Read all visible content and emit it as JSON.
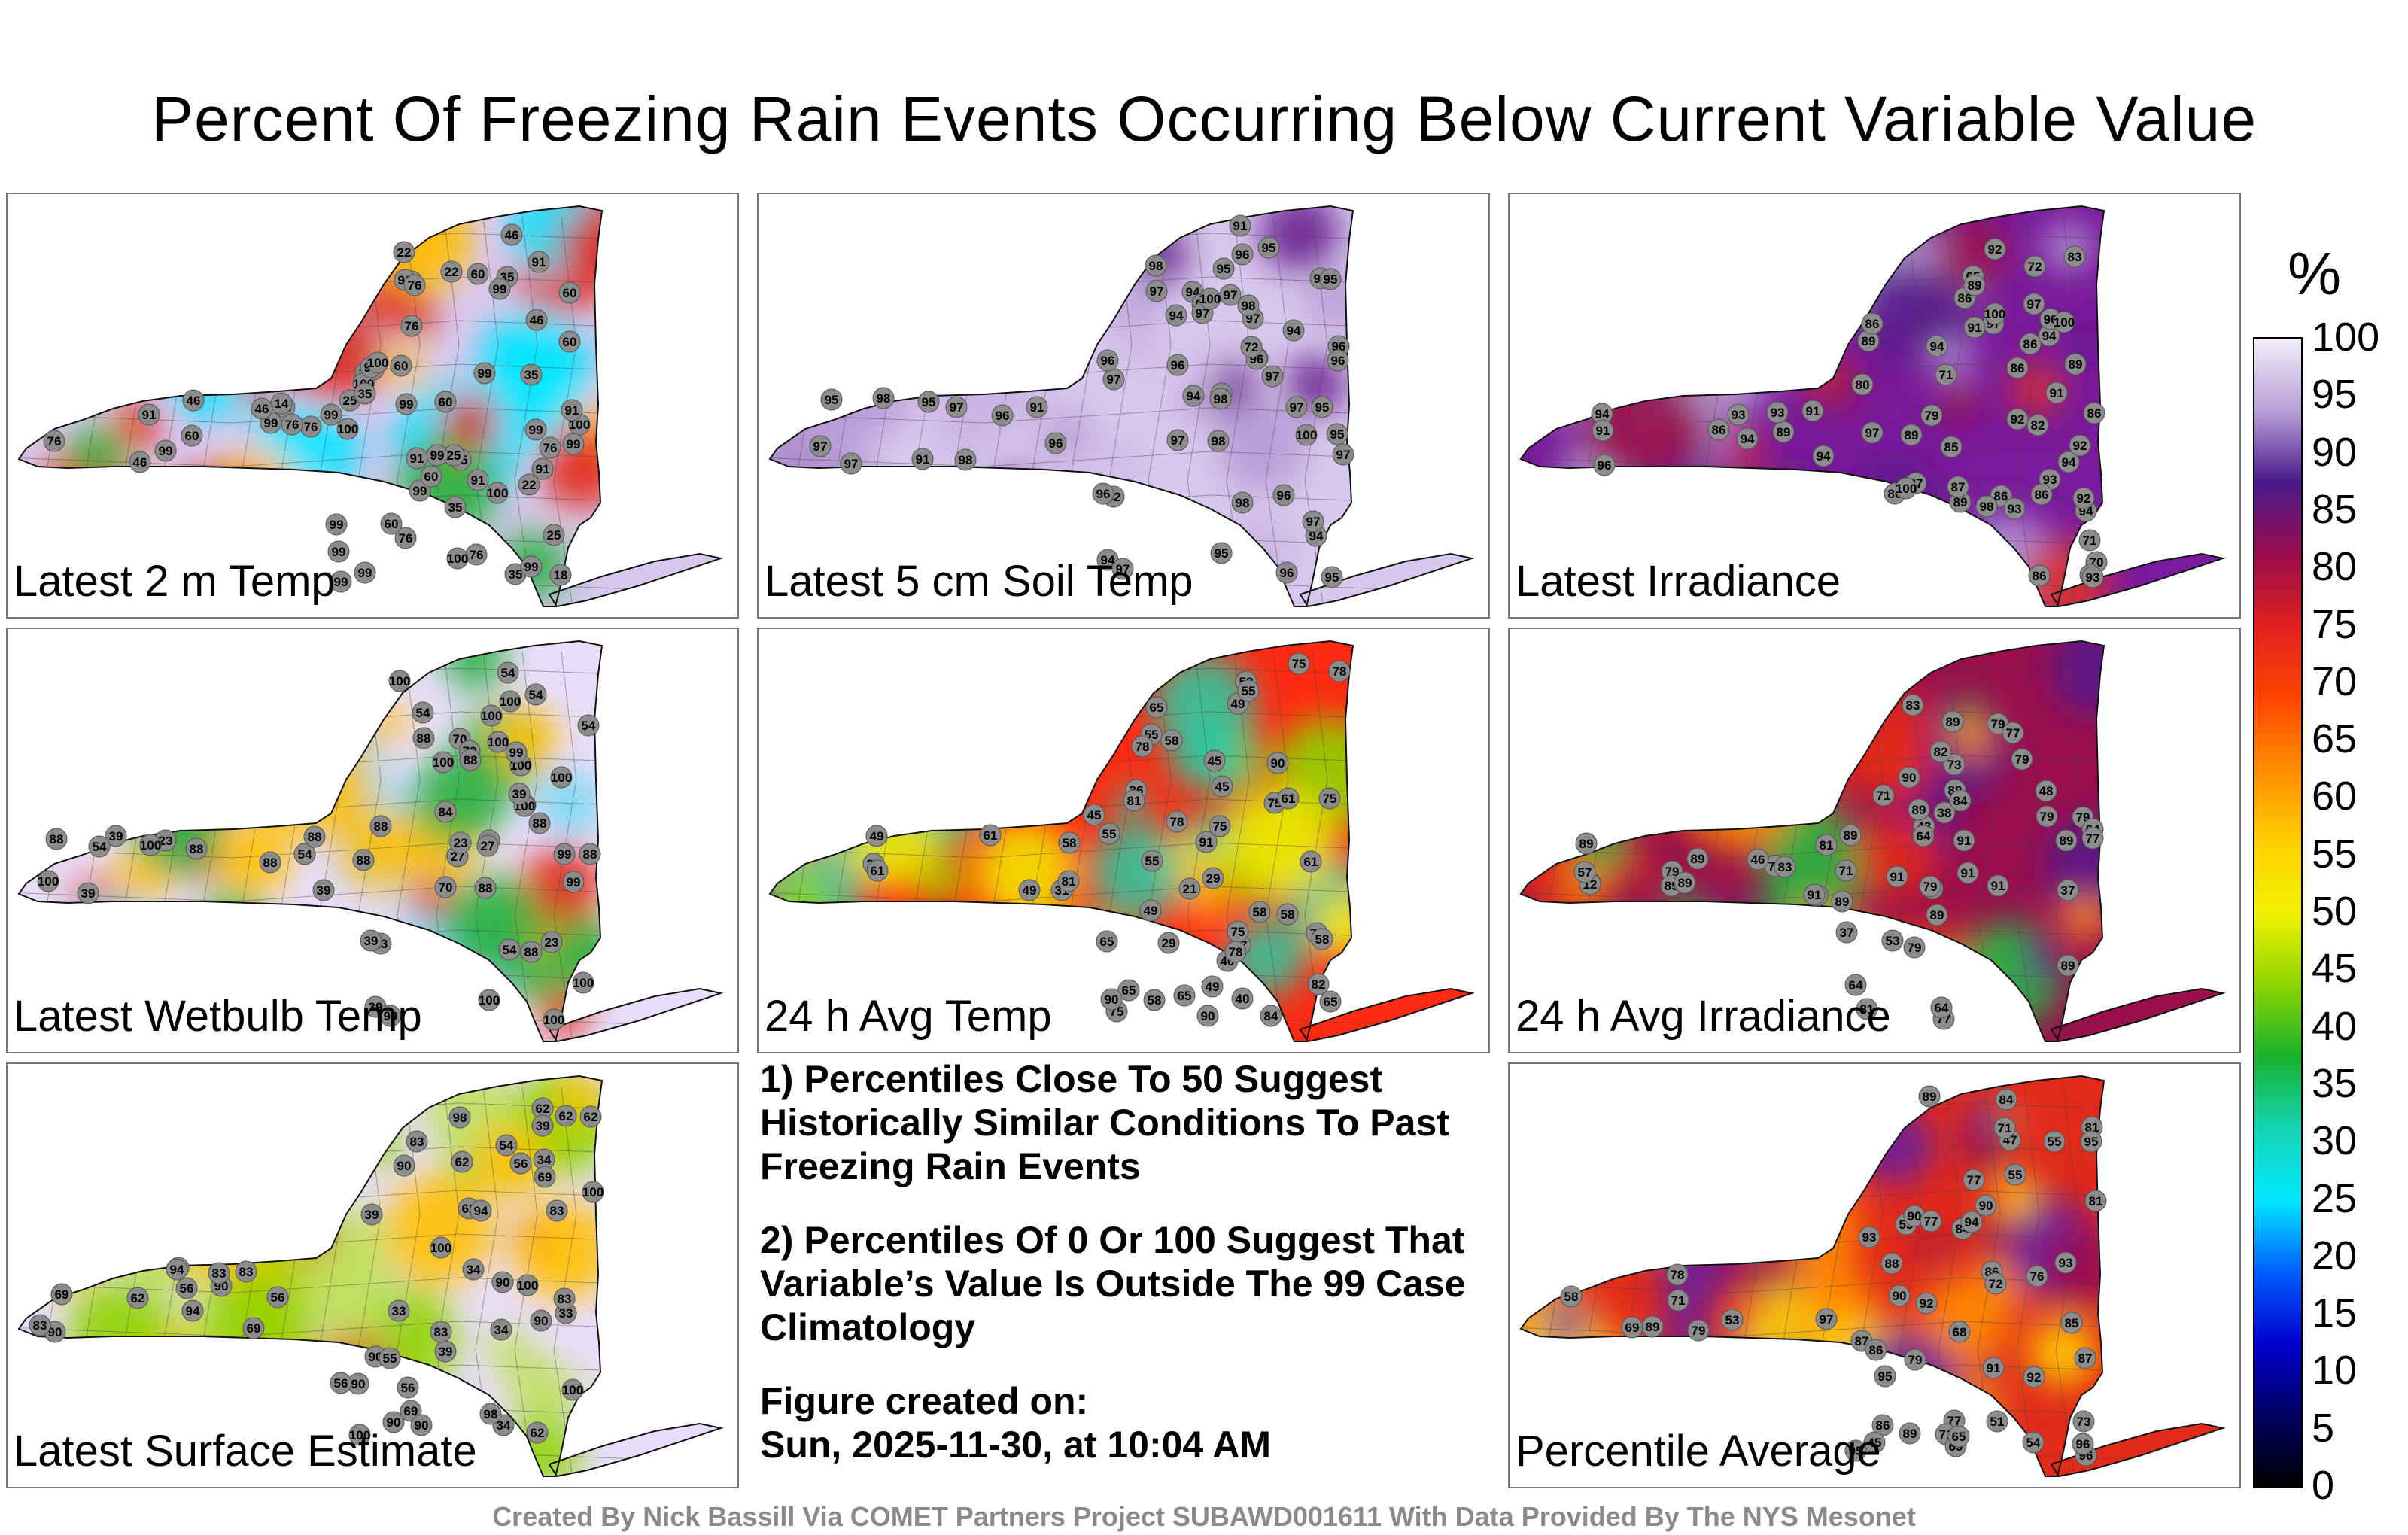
{
  "title": "Percent Of Freezing Rain Events Occurring Below Current Variable Value",
  "colorbar": {
    "unit": "%",
    "ticks": [
      "100",
      "95",
      "90",
      "85",
      "80",
      "75",
      "70",
      "65",
      "60",
      "55",
      "50",
      "45",
      "40",
      "35",
      "30",
      "25",
      "20",
      "15",
      "10",
      "5",
      "0"
    ],
    "stops": [
      "#f2eef8",
      "#b9a0d6",
      "#4a1a8c",
      "#9a0c4c",
      "#e02020",
      "#ff4400",
      "#ff8c00",
      "#ffcf00",
      "#f2f200",
      "#8fd400",
      "#17b22b",
      "#15d4b4",
      "#00e8ff",
      "#0060ff",
      "#0000d0",
      "#000060",
      "#000000"
    ]
  },
  "panels": [
    {
      "label": "Latest 2 m Temp",
      "palette": [
        "#d9c8ee",
        "#e22a1a",
        "#ffc000",
        "#00e5ff",
        "#2ab040"
      ],
      "values": [
        "76",
        "76",
        "25",
        "22",
        "91",
        "25",
        "18",
        "60",
        "99",
        "76",
        "35",
        "35",
        "91",
        "60",
        "14",
        "22",
        "35",
        "25",
        "25",
        "99",
        "100",
        "35",
        "46",
        "60",
        "76",
        "99",
        "35",
        "46",
        "60",
        "99",
        "76",
        "99",
        "99",
        "91",
        "35",
        "76",
        "99",
        "60",
        "100",
        "60",
        "35",
        "22",
        "91",
        "76",
        "91",
        "91",
        "46",
        "99",
        "99",
        "99",
        "46",
        "76",
        "91",
        "46",
        "60",
        "99",
        "99",
        "99",
        "99",
        "76",
        "91",
        "60",
        "99",
        "100",
        "100",
        "99",
        "100",
        "100"
      ]
    },
    {
      "label": "Latest 5 cm Soil Temp",
      "palette": [
        "#d9c8ee",
        "#b79ad6",
        "#c9b3e3",
        "#6a1f8f",
        "#d9c8ee"
      ],
      "values": [
        "94",
        "95",
        "95",
        "96",
        "91",
        "95",
        "94",
        "98",
        "82",
        "97",
        "96",
        "91",
        "98",
        "96",
        "95",
        "97",
        "72",
        "94",
        "97",
        "97",
        "98",
        "96",
        "95",
        "95",
        "97",
        "91",
        "97",
        "97",
        "94",
        "97",
        "95",
        "98",
        "97",
        "96",
        "98",
        "96",
        "100",
        "95",
        "95",
        "98",
        "95",
        "97",
        "98",
        "96",
        "72",
        "96",
        "97",
        "97",
        "94",
        "96",
        "94",
        "96",
        "97",
        "98",
        "97",
        "97",
        "96",
        "100"
      ]
    },
    {
      "label": "Latest Irradiance",
      "palette": [
        "#7a1a9c",
        "#5a1a8a",
        "#b399d4",
        "#d93030",
        "#9a0f4c"
      ],
      "values": [
        "89",
        "89",
        "86",
        "72",
        "93",
        "80",
        "86",
        "97",
        "86",
        "89",
        "65",
        "79",
        "82",
        "87",
        "71",
        "71",
        "70",
        "83",
        "92",
        "94",
        "86",
        "89",
        "100",
        "91",
        "87",
        "86",
        "94",
        "93",
        "89",
        "94",
        "91",
        "86",
        "94",
        "92",
        "92",
        "93",
        "96",
        "97",
        "86",
        "89",
        "85",
        "91",
        "98",
        "93",
        "100",
        "94",
        "86",
        "91",
        "97",
        "93",
        "94",
        "96",
        "86",
        "86",
        "94",
        "92",
        "100",
        "93"
      ]
    },
    {
      "label": "Latest Wetbulb Temp",
      "palette": [
        "#e9defa",
        "#e22a1a",
        "#ffc000",
        "#6bd9ef",
        "#2ab040"
      ],
      "values": [
        "88",
        "88",
        "27",
        "23",
        "100",
        "39",
        "39",
        "54",
        "88",
        "100",
        "54",
        "23",
        "39",
        "88",
        "39",
        "27",
        "23",
        "54",
        "100",
        "100",
        "70",
        "39",
        "88",
        "54",
        "100",
        "100",
        "88",
        "88",
        "70",
        "54",
        "88",
        "23",
        "88",
        "39",
        "99",
        "54",
        "99",
        "88",
        "100",
        "100",
        "99",
        "54",
        "100",
        "70",
        "84",
        "39",
        "88",
        "99",
        "100",
        "100",
        "100",
        "100",
        "100",
        "88"
      ]
    },
    {
      "label": "24 h Avg Temp",
      "palette": [
        "#ff2a12",
        "#ffa500",
        "#f2e400",
        "#8fd400",
        "#30c8a0"
      ],
      "values": [
        "49",
        "45",
        "29",
        "49",
        "17",
        "36",
        "24",
        "29",
        "75",
        "58",
        "31",
        "40",
        "75",
        "58",
        "21",
        "58",
        "55",
        "45",
        "58",
        "65",
        "49",
        "55",
        "65",
        "75",
        "78",
        "75",
        "75",
        "78",
        "81",
        "58",
        "49",
        "55",
        "61",
        "45",
        "65",
        "65",
        "40",
        "49",
        "55",
        "61",
        "58",
        "78",
        "61",
        "58",
        "78",
        "75",
        "61",
        "84",
        "78",
        "90",
        "81",
        "82",
        "91",
        "90",
        "90",
        "65"
      ]
    },
    {
      "label": "24 h Avg Irradiance",
      "palette": [
        "#9a0f4c",
        "#e22a1a",
        "#5a1a8a",
        "#ff8c00",
        "#2ab040"
      ],
      "values": [
        "83",
        "79",
        "89",
        "87",
        "89",
        "79",
        "71",
        "89",
        "48",
        "12",
        "64",
        "89",
        "46",
        "64",
        "77",
        "79",
        "43",
        "77",
        "79",
        "81",
        "79",
        "84",
        "73",
        "83",
        "79",
        "89",
        "64",
        "89",
        "37",
        "57",
        "38",
        "53",
        "64",
        "81",
        "89",
        "89",
        "77",
        "89",
        "82",
        "89",
        "79",
        "84",
        "89",
        "71",
        "64",
        "91",
        "37",
        "90",
        "91",
        "91",
        "91",
        "91",
        "79",
        "89"
      ]
    },
    {
      "label": "Latest Surface Estimate",
      "palette": [
        "#e9defa",
        "#e22a1a",
        "#ffc000",
        "#8fd400",
        "#bfe05a"
      ],
      "values": [
        "62",
        "62",
        "34",
        "69",
        "69",
        "33",
        "56",
        "90",
        "83",
        "33",
        "39",
        "39",
        "55",
        "56",
        "62",
        "54",
        "34",
        "83",
        "39",
        "94",
        "98",
        "90",
        "90",
        "69",
        "62",
        "90",
        "94",
        "100",
        "56",
        "83",
        "90",
        "34",
        "90",
        "83",
        "62",
        "83",
        "62",
        "90",
        "34",
        "83",
        "56",
        "62",
        "69",
        "83",
        "56",
        "90",
        "62",
        "90",
        "94",
        "98",
        "100",
        "100",
        "100",
        "100"
      ]
    },
    {
      "label": "Percentile Average",
      "palette": [
        "#e22a1a",
        "#ff8c00",
        "#ffd000",
        "#6b1f9c",
        "#9a0f4c"
      ],
      "values": [
        "77",
        "77",
        "54",
        "76",
        "55",
        "84",
        "53",
        "55",
        "71",
        "86",
        "53",
        "47",
        "45",
        "58",
        "90",
        "69",
        "65",
        "69",
        "86",
        "91",
        "90",
        "78",
        "87",
        "84",
        "79",
        "93",
        "86",
        "89",
        "79",
        "81",
        "68",
        "81",
        "73",
        "92",
        "87",
        "85",
        "72",
        "77",
        "51",
        "71",
        "89",
        "71",
        "90",
        "92",
        "88",
        "89",
        "93",
        "95",
        "96",
        "97",
        "95",
        "94",
        "95",
        "96"
      ]
    }
  ],
  "notes": [
    "1) Percentiles Close To 50 Suggest Historically Similar Conditions To Past Freezing Rain Events",
    "2) Percentiles Of 0 Or 100 Suggest That Variable’s Value Is Outside The 99 Case Climatology",
    "Figure created on:",
    "Sun, 2025-11-30, at 10:04 AM"
  ],
  "credit": "Created By Nick Bassill Via COMET Partners Project SUBAWD001611 With Data Provided By The NYS Mesonet"
}
